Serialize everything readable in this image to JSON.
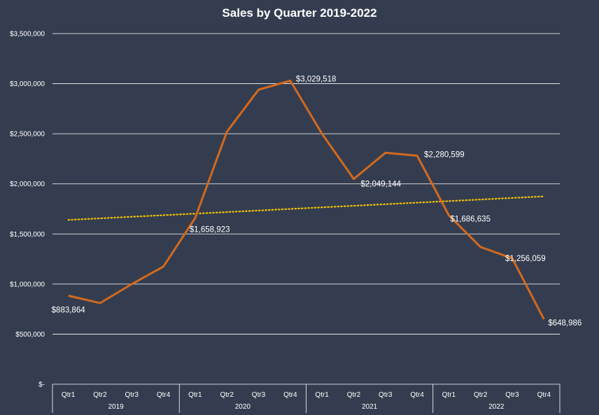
{
  "chart_data": {
    "type": "line",
    "title": "Sales by Quarter 2019-2022",
    "xlabel": "",
    "ylabel": "",
    "ylim": [
      0,
      3500000
    ],
    "y_ticks": [
      {
        "value": 0,
        "label": "$-"
      },
      {
        "value": 500000,
        "label": "$500,000"
      },
      {
        "value": 1000000,
        "label": "$1,000,000"
      },
      {
        "value": 1500000,
        "label": "$1,500,000"
      },
      {
        "value": 2000000,
        "label": "$2,000,000"
      },
      {
        "value": 2500000,
        "label": "$2,500,000"
      },
      {
        "value": 3000000,
        "label": "$3,000,000"
      },
      {
        "value": 3500000,
        "label": "$3,500,000"
      }
    ],
    "grid": true,
    "legend": "none",
    "groups": [
      {
        "label": "2019",
        "categories": [
          "Qtr1",
          "Qtr2",
          "Qtr3",
          "Qtr4"
        ]
      },
      {
        "label": "2020",
        "categories": [
          "Qtr1",
          "Qtr2",
          "Qtr3",
          "Qtr4"
        ]
      },
      {
        "label": "2021",
        "categories": [
          "Qtr1",
          "Qtr2",
          "Qtr3",
          "Qtr4"
        ]
      },
      {
        "label": "2022",
        "categories": [
          "Qtr1",
          "Qtr2",
          "Qtr3",
          "Qtr4"
        ]
      }
    ],
    "series": [
      {
        "values": [
          883864,
          810000,
          1000000,
          1175000,
          1658923,
          2520000,
          2940000,
          3029518,
          2500000,
          2049144,
          2310000,
          2280599,
          1686635,
          1370000,
          1256059,
          648986
        ],
        "color": "#d2691e"
      }
    ],
    "trendline": {
      "type": "linear",
      "style": "dotted",
      "color": "#f2c200",
      "start": 1640000,
      "end": 1875000
    },
    "data_labels": [
      {
        "index": 0,
        "text": "$883,864"
      },
      {
        "index": 4,
        "text": "$1,658,923"
      },
      {
        "index": 7,
        "text": "$3,029,518"
      },
      {
        "index": 9,
        "text": "$2,049,144"
      },
      {
        "index": 11,
        "text": "$2,280,599"
      },
      {
        "index": 12,
        "text": "$1,686,635"
      },
      {
        "index": 14,
        "text": "$1,256,059"
      },
      {
        "index": 15,
        "text": "$648,986"
      }
    ],
    "colors": {
      "background": "#343d4f",
      "grid": "#ffffff",
      "text": "#ffffff"
    }
  }
}
